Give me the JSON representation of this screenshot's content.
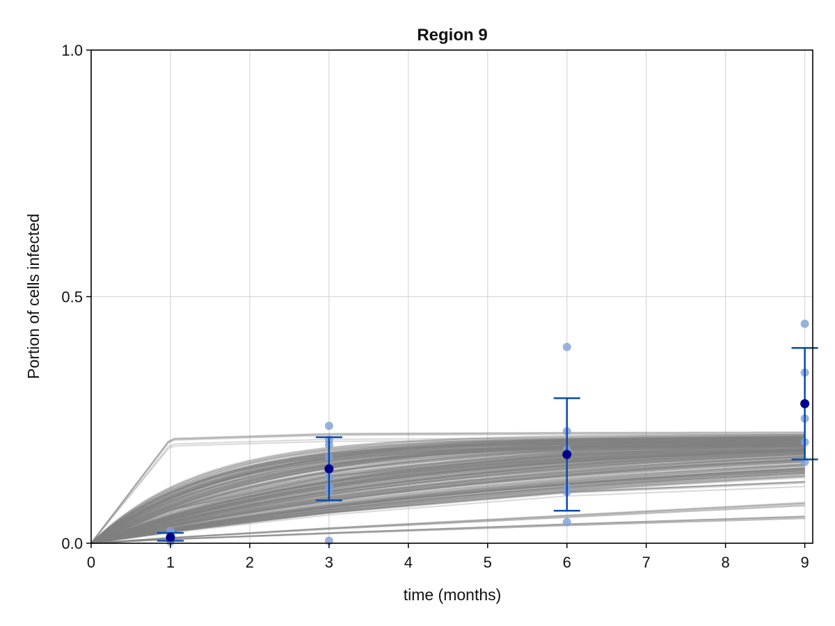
{
  "chart_data": {
    "type": "line",
    "title": "Region 9",
    "xlabel": "time (months)",
    "ylabel": "Portion of cells infected",
    "xlim": [
      0,
      9.1
    ],
    "ylim": [
      0,
      1
    ],
    "x_ticks": [
      {
        "value": 0,
        "label": "0"
      },
      {
        "value": 1,
        "label": "1"
      },
      {
        "value": 2,
        "label": "2"
      },
      {
        "value": 3,
        "label": "3"
      },
      {
        "value": 4,
        "label": "4"
      },
      {
        "value": 5,
        "label": "5"
      },
      {
        "value": 6,
        "label": "6"
      },
      {
        "value": 7,
        "label": "7"
      },
      {
        "value": 8,
        "label": "8"
      },
      {
        "value": 9,
        "label": "9"
      }
    ],
    "y_ticks": [
      {
        "value": 0,
        "label": "0.0"
      },
      {
        "value": 0.5,
        "label": "0.5"
      },
      {
        "value": 1,
        "label": "1.0"
      }
    ],
    "grid": true,
    "legend": "none",
    "colors": {
      "simulation": "#808080",
      "observation_points": "#7f9fd6",
      "mean_marker": "#00008b",
      "error_bar": "#0a4aa8",
      "grid": "#d9d9d9",
      "axis": "#000000"
    },
    "simulated_trajectories": {
      "x_range": [
        0,
        9
      ],
      "curve_count": 260,
      "plateau_range": [
        0.195,
        0.223
      ],
      "rate_range": [
        0.8,
        5.0
      ],
      "reference_curves": [
        {
          "x": [
            0,
            1,
            3,
            6,
            9
          ],
          "y": [
            0,
            0.209,
            0.219,
            0.221,
            0.222
          ]
        },
        {
          "x": [
            0,
            1,
            3,
            6,
            9
          ],
          "y": [
            0,
            0.07,
            0.14,
            0.185,
            0.205
          ]
        },
        {
          "x": [
            0,
            1,
            3,
            6,
            9
          ],
          "y": [
            0,
            0.022,
            0.06,
            0.1,
            0.12
          ]
        },
        {
          "x": [
            0,
            1,
            3,
            6,
            9
          ],
          "y": [
            0,
            0.011,
            0.03,
            0.055,
            0.08
          ]
        },
        {
          "x": [
            0,
            1,
            3,
            6,
            9
          ],
          "y": [
            0,
            0.008,
            0.02,
            0.037,
            0.052
          ]
        }
      ]
    },
    "observations": [
      {
        "x": 1,
        "y": [
          0.003,
          0.008,
          0.012,
          0.018,
          0.025
        ]
      },
      {
        "x": 3,
        "y": [
          0.005,
          0.105,
          0.115,
          0.135,
          0.155,
          0.175,
          0.2,
          0.21,
          0.238
        ]
      },
      {
        "x": 6,
        "y": [
          0.043,
          0.104,
          0.113,
          0.18,
          0.19,
          0.227,
          0.398
        ]
      },
      {
        "x": 9,
        "y": [
          0.165,
          0.205,
          0.253,
          0.346,
          0.445
        ]
      }
    ],
    "mean_with_error": [
      {
        "x": 1,
        "mean": 0.012,
        "lower": 0.005,
        "upper": 0.021
      },
      {
        "x": 3,
        "mean": 0.151,
        "lower": 0.087,
        "upper": 0.215
      },
      {
        "x": 6,
        "mean": 0.18,
        "lower": 0.066,
        "upper": 0.294
      },
      {
        "x": 9,
        "mean": 0.283,
        "lower": 0.17,
        "upper": 0.396
      }
    ]
  }
}
